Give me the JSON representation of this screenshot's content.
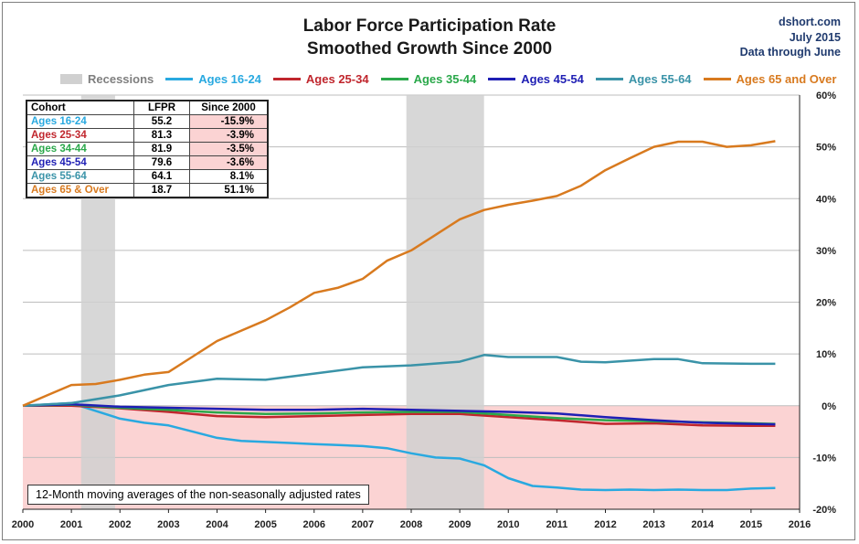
{
  "header": {
    "title_line1": "Labor Force Participation Rate",
    "title_line2": "Smoothed Growth Since 2000",
    "credit_line1": "dshort.com",
    "credit_line2": "July 2015",
    "credit_line3": "Data through June"
  },
  "note": "12-Month moving  averages of the non-seasonally adjusted rates",
  "colors": {
    "recession": "#d0d0d0",
    "negative_zone": "#fbd3d3",
    "grid": "#bdbdbd",
    "axis": "#222222"
  },
  "table": {
    "headers": [
      "Cohort",
      "LFPR",
      "Since 2000"
    ],
    "rows": [
      {
        "cohort": "Ages 16-24",
        "lfpr": "55.2",
        "since": "-15.9%",
        "color": "#29a9e0",
        "negative": true
      },
      {
        "cohort": "Ages 25-34",
        "lfpr": "81.3",
        "since": "-3.9%",
        "color": "#c0262d",
        "negative": true
      },
      {
        "cohort": "Ages 34-44",
        "lfpr": "81.9",
        "since": "-3.5%",
        "color": "#2aa84a",
        "negative": true
      },
      {
        "cohort": "Ages 45-54",
        "lfpr": "79.6",
        "since": "-3.6%",
        "color": "#1f1fb4",
        "negative": true
      },
      {
        "cohort": "Ages 55-64",
        "lfpr": "64.1",
        "since": "8.1%",
        "color": "#3a93a8",
        "negative": false
      },
      {
        "cohort": "Ages 65  & Over",
        "lfpr": "18.7",
        "since": "51.1%",
        "color": "#d87a1f",
        "negative": false
      }
    ]
  },
  "chart_data": {
    "type": "line",
    "xlabel": "",
    "ylabel": "",
    "xlim": [
      2000,
      2016
    ],
    "ylim": [
      -0.2,
      0.6
    ],
    "x_ticks": [
      "2000",
      "2001",
      "2002",
      "2003",
      "2004",
      "2005",
      "2006",
      "2007",
      "2008",
      "2009",
      "2010",
      "2011",
      "2012",
      "2013",
      "2014",
      "2015",
      "2016"
    ],
    "y_ticks": [
      "-20%",
      "-10%",
      "0%",
      "10%",
      "20%",
      "30%",
      "40%",
      "50%",
      "60%"
    ],
    "y_tick_values": [
      -0.2,
      -0.1,
      0,
      0.1,
      0.2,
      0.3,
      0.4,
      0.5,
      0.6
    ],
    "grid": "horizontal",
    "legend_position": "top",
    "recession_label": "Recessions",
    "recessions": [
      [
        2001.2,
        2001.9
      ],
      [
        2007.9,
        2009.5
      ]
    ],
    "series": [
      {
        "name": "Ages 16-24",
        "color": "#29a9e0",
        "points": [
          [
            2000,
            0
          ],
          [
            2001,
            0.005
          ],
          [
            2001.5,
            -0.01
          ],
          [
            2002,
            -0.025
          ],
          [
            2002.5,
            -0.033
          ],
          [
            2003,
            -0.038
          ],
          [
            2003.5,
            -0.05
          ],
          [
            2004,
            -0.062
          ],
          [
            2004.5,
            -0.068
          ],
          [
            2005,
            -0.07
          ],
          [
            2005.5,
            -0.072
          ],
          [
            2006,
            -0.074
          ],
          [
            2006.5,
            -0.076
          ],
          [
            2007,
            -0.078
          ],
          [
            2007.5,
            -0.082
          ],
          [
            2008,
            -0.092
          ],
          [
            2008.5,
            -0.1
          ],
          [
            2009,
            -0.102
          ],
          [
            2009.5,
            -0.115
          ],
          [
            2010,
            -0.14
          ],
          [
            2010.5,
            -0.155
          ],
          [
            2011,
            -0.158
          ],
          [
            2011.5,
            -0.162
          ],
          [
            2012,
            -0.163
          ],
          [
            2012.5,
            -0.162
          ],
          [
            2013,
            -0.163
          ],
          [
            2013.5,
            -0.162
          ],
          [
            2014,
            -0.163
          ],
          [
            2014.5,
            -0.163
          ],
          [
            2015,
            -0.16
          ],
          [
            2015.5,
            -0.159
          ]
        ]
      },
      {
        "name": "Ages 25-34",
        "color": "#c0262d",
        "points": [
          [
            2000,
            0
          ],
          [
            2001,
            0
          ],
          [
            2002,
            -0.005
          ],
          [
            2003,
            -0.012
          ],
          [
            2004,
            -0.02
          ],
          [
            2005,
            -0.022
          ],
          [
            2006,
            -0.02
          ],
          [
            2007,
            -0.018
          ],
          [
            2008,
            -0.016
          ],
          [
            2009,
            -0.016
          ],
          [
            2010,
            -0.022
          ],
          [
            2011,
            -0.028
          ],
          [
            2012,
            -0.035
          ],
          [
            2013,
            -0.034
          ],
          [
            2014,
            -0.038
          ],
          [
            2015,
            -0.039
          ],
          [
            2015.5,
            -0.039
          ]
        ]
      },
      {
        "name": "Ages 35-44",
        "color": "#2aa84a",
        "points": [
          [
            2000,
            0
          ],
          [
            2001,
            0.002
          ],
          [
            2002,
            -0.004
          ],
          [
            2003,
            -0.008
          ],
          [
            2004,
            -0.013
          ],
          [
            2005,
            -0.016
          ],
          [
            2006,
            -0.015
          ],
          [
            2007,
            -0.013
          ],
          [
            2008,
            -0.012
          ],
          [
            2009,
            -0.012
          ],
          [
            2010,
            -0.018
          ],
          [
            2011,
            -0.024
          ],
          [
            2012,
            -0.028
          ],
          [
            2013,
            -0.03
          ],
          [
            2014,
            -0.032
          ],
          [
            2015,
            -0.034
          ],
          [
            2015.5,
            -0.035
          ]
        ]
      },
      {
        "name": "Ages 45-54",
        "color": "#1f1fb4",
        "points": [
          [
            2000,
            0
          ],
          [
            2001,
            0.003
          ],
          [
            2002,
            -0.002
          ],
          [
            2003,
            -0.004
          ],
          [
            2004,
            -0.006
          ],
          [
            2005,
            -0.008
          ],
          [
            2006,
            -0.008
          ],
          [
            2007,
            -0.006
          ],
          [
            2008,
            -0.008
          ],
          [
            2009,
            -0.01
          ],
          [
            2010,
            -0.012
          ],
          [
            2011,
            -0.015
          ],
          [
            2012,
            -0.022
          ],
          [
            2013,
            -0.028
          ],
          [
            2014,
            -0.033
          ],
          [
            2015,
            -0.035
          ],
          [
            2015.5,
            -0.036
          ]
        ]
      },
      {
        "name": "Ages 55-64",
        "color": "#3a93a8",
        "points": [
          [
            2000,
            0
          ],
          [
            2001,
            0.005
          ],
          [
            2002,
            0.02
          ],
          [
            2003,
            0.04
          ],
          [
            2004,
            0.052
          ],
          [
            2005,
            0.05
          ],
          [
            2006,
            0.062
          ],
          [
            2007,
            0.074
          ],
          [
            2008,
            0.078
          ],
          [
            2009,
            0.085
          ],
          [
            2009.5,
            0.098
          ],
          [
            2010,
            0.094
          ],
          [
            2011,
            0.094
          ],
          [
            2011.5,
            0.085
          ],
          [
            2012,
            0.084
          ],
          [
            2013,
            0.09
          ],
          [
            2013.5,
            0.09
          ],
          [
            2014,
            0.082
          ],
          [
            2015,
            0.081
          ],
          [
            2015.5,
            0.081
          ]
        ]
      },
      {
        "name": "Ages 65 and Over",
        "color": "#d87a1f",
        "points": [
          [
            2000,
            0
          ],
          [
            2000.5,
            0.02
          ],
          [
            2001,
            0.04
          ],
          [
            2001.5,
            0.042
          ],
          [
            2002,
            0.05
          ],
          [
            2002.5,
            0.06
          ],
          [
            2003,
            0.065
          ],
          [
            2003.5,
            0.095
          ],
          [
            2004,
            0.125
          ],
          [
            2004.5,
            0.145
          ],
          [
            2005,
            0.165
          ],
          [
            2005.5,
            0.19
          ],
          [
            2006,
            0.218
          ],
          [
            2006.5,
            0.228
          ],
          [
            2007,
            0.245
          ],
          [
            2007.5,
            0.28
          ],
          [
            2008,
            0.3
          ],
          [
            2008.5,
            0.33
          ],
          [
            2009,
            0.36
          ],
          [
            2009.5,
            0.378
          ],
          [
            2010,
            0.388
          ],
          [
            2010.5,
            0.396
          ],
          [
            2011,
            0.405
          ],
          [
            2011.5,
            0.425
          ],
          [
            2012,
            0.455
          ],
          [
            2012.5,
            0.478
          ],
          [
            2013,
            0.5
          ],
          [
            2013.5,
            0.51
          ],
          [
            2014,
            0.51
          ],
          [
            2014.5,
            0.5
          ],
          [
            2015,
            0.503
          ],
          [
            2015.5,
            0.511
          ]
        ]
      }
    ]
  }
}
